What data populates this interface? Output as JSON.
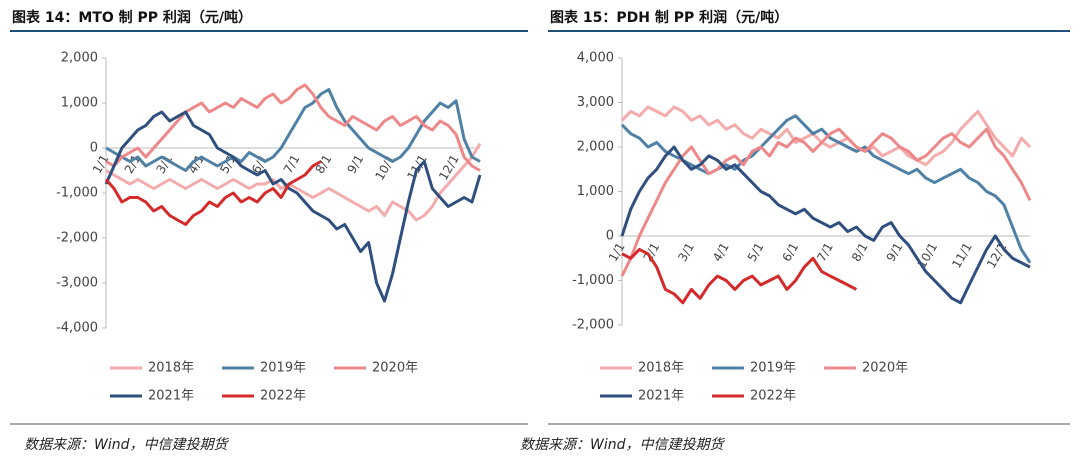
{
  "chart_data": [
    {
      "type": "line",
      "title": "图表 14：MTO 制 PP 利润（元/吨）",
      "source": "数据来源：Wind，中信建投期货",
      "categories": [
        "1/1",
        null,
        null,
        null,
        "2/1",
        null,
        null,
        null,
        "3/1",
        null,
        null,
        null,
        "4/1",
        null,
        null,
        null,
        "5/1",
        null,
        null,
        null,
        "6/1",
        null,
        null,
        null,
        "7/1",
        null,
        null,
        null,
        "8/1",
        null,
        null,
        null,
        "9/1",
        null,
        null,
        null,
        "10/1",
        null,
        null,
        null,
        "11/1",
        null,
        null,
        null,
        "12/1",
        null,
        null,
        null
      ],
      "ylim": [
        -4000,
        2000
      ],
      "yticks": [
        {
          "value": -4000,
          "label": "-4,000"
        },
        {
          "value": -3000,
          "label": "-3,000"
        },
        {
          "value": -2000,
          "label": "-2,000"
        },
        {
          "value": -1000,
          "label": "-1,000"
        },
        0,
        {
          "value": 1000,
          "label": "1,000"
        },
        {
          "value": 2000,
          "label": "2,000"
        }
      ],
      "series": [
        {
          "name": "2018年",
          "color": "#f4abab",
          "values": [
            -500,
            -600,
            -700,
            -800,
            -700,
            -800,
            -900,
            -800,
            -700,
            -800,
            -900,
            -800,
            -700,
            -800,
            -900,
            -800,
            -700,
            -800,
            -900,
            -800,
            -800,
            -700,
            -900,
            -800,
            -900,
            -1000,
            -1100,
            -1000,
            -900,
            -1000,
            -1100,
            -1200,
            -1300,
            -1400,
            -1300,
            -1500,
            -1200,
            -1300,
            -1400,
            -1600,
            -1500,
            -1300,
            -1000,
            -800,
            -600,
            -400,
            -200,
            100
          ]
        },
        {
          "name": "2019年",
          "color": "#4f80a6",
          "values": [
            0,
            -100,
            -200,
            -300,
            -200,
            -400,
            -300,
            -200,
            -300,
            -400,
            -500,
            -300,
            -200,
            -300,
            -400,
            -300,
            -200,
            -300,
            -100,
            -200,
            -300,
            -200,
            0,
            300,
            600,
            900,
            1000,
            1200,
            1300,
            900,
            600,
            400,
            200,
            0,
            -100,
            -200,
            -300,
            -200,
            0,
            300,
            600,
            800,
            1000,
            900,
            1050,
            200,
            -200,
            -300
          ]
        },
        {
          "name": "2020年",
          "color": "#ee8888",
          "values": [
            -300,
            -400,
            -200,
            -100,
            0,
            -200,
            0,
            200,
            400,
            600,
            800,
            900,
            1000,
            800,
            900,
            1000,
            900,
            1100,
            1000,
            900,
            1100,
            1200,
            1000,
            1100,
            1300,
            1400,
            1200,
            900,
            700,
            600,
            500,
            700,
            600,
            500,
            400,
            600,
            700,
            500,
            600,
            700,
            500,
            400,
            600,
            500,
            300,
            -200,
            -400,
            -500
          ]
        },
        {
          "name": "2021年",
          "color": "#2f4f7e",
          "values": [
            -800,
            -400,
            0,
            200,
            400,
            500,
            700,
            800,
            600,
            700,
            800,
            500,
            400,
            300,
            0,
            -100,
            -200,
            -400,
            -500,
            -600,
            -500,
            -800,
            -700,
            -900,
            -1000,
            -1200,
            -1400,
            -1500,
            -1600,
            -1800,
            -1700,
            -2000,
            -2300,
            -2100,
            -3000,
            -3400,
            -2800,
            -2000,
            -1200,
            -500,
            -300,
            -900,
            -1100,
            -1300,
            -1200,
            -1100,
            -1200,
            -600
          ]
        },
        {
          "name": "2022年",
          "color": "#d42a2a",
          "values": [
            -700,
            -900,
            -1200,
            -1100,
            -1100,
            -1200,
            -1400,
            -1300,
            -1500,
            -1600,
            -1700,
            -1500,
            -1400,
            -1200,
            -1300,
            -1100,
            -1000,
            -1200,
            -1100,
            -1200,
            -1000,
            -900,
            -1100,
            -800,
            -700,
            -600,
            -400,
            -300,
            null,
            null,
            null,
            null,
            null,
            null,
            null,
            null,
            null,
            null,
            null,
            null,
            null,
            null,
            null,
            null,
            null,
            null,
            null,
            null
          ]
        }
      ]
    },
    {
      "type": "line",
      "title": "图表 15：PDH 制 PP 利润（元/吨）",
      "source": "数据来源：Wind，中信建投期货",
      "categories": [
        "1/1",
        null,
        null,
        null,
        "2/1",
        null,
        null,
        null,
        "3/1",
        null,
        null,
        null,
        "4/1",
        null,
        null,
        null,
        "5/1",
        null,
        null,
        null,
        "6/1",
        null,
        null,
        null,
        "7/1",
        null,
        null,
        null,
        "8/1",
        null,
        null,
        null,
        "9/1",
        null,
        null,
        null,
        "10/1",
        null,
        null,
        null,
        "11/1",
        null,
        null,
        null,
        "12/1",
        null,
        null,
        null
      ],
      "ylim": [
        -2000,
        4000
      ],
      "yticks": [
        {
          "value": -2000,
          "label": "-2,000"
        },
        {
          "value": -1000,
          "label": "-1,000"
        },
        0,
        {
          "value": 1000,
          "label": "1,000"
        },
        {
          "value": 2000,
          "label": "2,000"
        },
        {
          "value": 3000,
          "label": "3,000"
        },
        {
          "value": 4000,
          "label": "4,000"
        }
      ],
      "series": [
        {
          "name": "2018年",
          "color": "#f4abab",
          "values": [
            2600,
            2800,
            2700,
            2900,
            2800,
            2700,
            2900,
            2800,
            2600,
            2700,
            2500,
            2600,
            2400,
            2500,
            2300,
            2200,
            2400,
            2300,
            2200,
            2400,
            2100,
            2200,
            2300,
            2100,
            2000,
            2100,
            2200,
            2000,
            1900,
            2000,
            1800,
            1900,
            2000,
            1800,
            1700,
            1600,
            1800,
            1900,
            2100,
            2400,
            2600,
            2800,
            2500,
            2200,
            2000,
            1800,
            2200,
            2000
          ]
        },
        {
          "name": "2019年",
          "color": "#4f80a6",
          "values": [
            2500,
            2300,
            2200,
            2000,
            2100,
            1900,
            1800,
            1700,
            1600,
            1500,
            1400,
            1500,
            1600,
            1500,
            1700,
            1800,
            2000,
            2200,
            2400,
            2600,
            2700,
            2500,
            2300,
            2400,
            2200,
            2100,
            2000,
            1900,
            2000,
            1800,
            1700,
            1600,
            1500,
            1400,
            1500,
            1300,
            1200,
            1300,
            1400,
            1500,
            1300,
            1200,
            1000,
            900,
            700,
            200,
            -300,
            -600
          ]
        },
        {
          "name": "2020年",
          "color": "#ee8888",
          "values": [
            -900,
            -500,
            0,
            400,
            800,
            1200,
            1500,
            1800,
            2000,
            1700,
            1400,
            1500,
            1700,
            1800,
            1600,
            1900,
            2000,
            1800,
            2100,
            2000,
            2200,
            2100,
            1900,
            2100,
            2300,
            2400,
            2200,
            2000,
            1900,
            2100,
            2300,
            2200,
            2000,
            1900,
            1700,
            1800,
            2000,
            2200,
            2300,
            2100,
            2000,
            2200,
            2400,
            2000,
            1800,
            1500,
            1200,
            800
          ]
        },
        {
          "name": "2021年",
          "color": "#2f4f7e",
          "values": [
            0,
            600,
            1000,
            1300,
            1500,
            1800,
            2000,
            1700,
            1500,
            1600,
            1800,
            1700,
            1500,
            1600,
            1400,
            1200,
            1000,
            900,
            700,
            600,
            500,
            600,
            400,
            300,
            200,
            300,
            100,
            200,
            0,
            -100,
            200,
            300,
            0,
            -200,
            -500,
            -800,
            -1000,
            -1200,
            -1400,
            -1500,
            -1100,
            -700,
            -300,
            0,
            -300,
            -500,
            -600,
            -700
          ]
        },
        {
          "name": "2022年",
          "color": "#d42a2a",
          "values": [
            -400,
            -500,
            -300,
            -400,
            -700,
            -1200,
            -1300,
            -1500,
            -1200,
            -1400,
            -1100,
            -900,
            -1000,
            -1200,
            -1000,
            -900,
            -1100,
            -1000,
            -900,
            -1200,
            -1000,
            -700,
            -500,
            -800,
            -900,
            -1000,
            -1100,
            -1200,
            null,
            null,
            null,
            null,
            null,
            null,
            null,
            null,
            null,
            null,
            null,
            null,
            null,
            null,
            null,
            null,
            null,
            null,
            null,
            null
          ]
        }
      ]
    }
  ]
}
